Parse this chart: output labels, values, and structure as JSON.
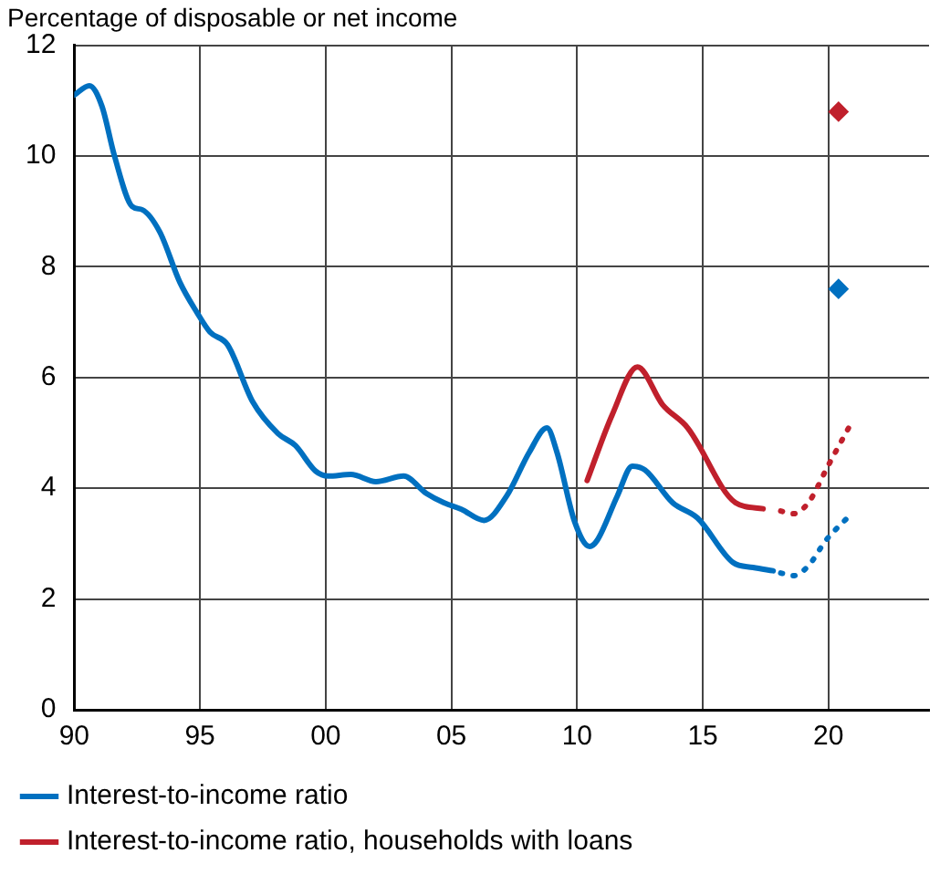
{
  "chart_data": {
    "type": "line",
    "title": "Percentage of disposable or net income",
    "xlim": [
      1990,
      2024
    ],
    "xticks": [
      {
        "value": 1990,
        "label": "90"
      },
      {
        "value": 1995,
        "label": "95"
      },
      {
        "value": 2000,
        "label": "00"
      },
      {
        "value": 2005,
        "label": "05"
      },
      {
        "value": 2010,
        "label": "10"
      },
      {
        "value": 2015,
        "label": "15"
      },
      {
        "value": 2020,
        "label": "20"
      }
    ],
    "ylim": [
      0,
      12
    ],
    "yticks": [
      0,
      2,
      4,
      6,
      8,
      10,
      12
    ],
    "grid": true,
    "legend": "bottom",
    "series": [
      {
        "name": "Interest-to-income ratio",
        "type": "line",
        "color": "#0070c0",
        "line_style": "solid",
        "marker": "none",
        "x": [
          1990.0,
          1990.6,
          1991.1,
          1991.6,
          1992.3,
          1992.7,
          1993.4,
          1994.2,
          1994.9,
          1995.4,
          1996.1,
          1997.1,
          1998.1,
          1998.8,
          1999.6,
          2000.1,
          2001.0,
          2002.0,
          2003.1,
          2004.0,
          2004.7,
          2005.4,
          2006.3,
          2007.2,
          2008.1,
          2008.8,
          2009.2,
          2009.9,
          2010.5,
          2010.8,
          2011.6,
          2012.2,
          2012.7,
          2013.8,
          2014.8,
          2016.2,
          2017.0,
          2017.8
        ],
        "values": [
          11.1,
          11.27,
          10.9,
          10.0,
          9.09,
          9.03,
          8.63,
          7.72,
          7.16,
          6.82,
          6.59,
          5.56,
          4.99,
          4.77,
          4.31,
          4.22,
          4.25,
          4.12,
          4.22,
          3.91,
          3.74,
          3.62,
          3.42,
          3.86,
          4.65,
          5.09,
          4.65,
          3.4,
          2.95,
          3.06,
          3.86,
          4.4,
          4.33,
          3.74,
          3.46,
          2.66,
          2.57,
          2.51
        ]
      },
      {
        "type": "line",
        "color": "#0070c0",
        "line_style": "dotted",
        "marker": "none",
        "x": [
          2018.1,
          2018.6,
          2019.2,
          2019.9,
          2020.8
        ],
        "values": [
          2.47,
          2.42,
          2.6,
          3.06,
          3.49
        ]
      },
      {
        "type": "scatter",
        "color": "#0070c0",
        "marker": "diamond",
        "x": [
          2020.4
        ],
        "values": [
          7.6
        ]
      },
      {
        "name": "Interest-to-income ratio, households with loans",
        "type": "line",
        "color": "#c0202c",
        "line_style": "solid",
        "marker": "none",
        "x": [
          2010.4,
          2011.4,
          2012.4,
          2013.4,
          2014.4,
          2016.3,
          2017.4
        ],
        "values": [
          4.14,
          5.33,
          6.19,
          5.51,
          5.09,
          3.74,
          3.63
        ]
      },
      {
        "type": "line",
        "color": "#c0202c",
        "line_style": "dotted",
        "marker": "none",
        "x": [
          2018.1,
          2018.6,
          2019.2,
          2020.0,
          2020.8
        ],
        "values": [
          3.59,
          3.54,
          3.74,
          4.42,
          5.09
        ]
      },
      {
        "type": "scatter",
        "color": "#c0202c",
        "marker": "diamond",
        "x": [
          2020.4
        ],
        "values": [
          10.8
        ]
      }
    ]
  }
}
